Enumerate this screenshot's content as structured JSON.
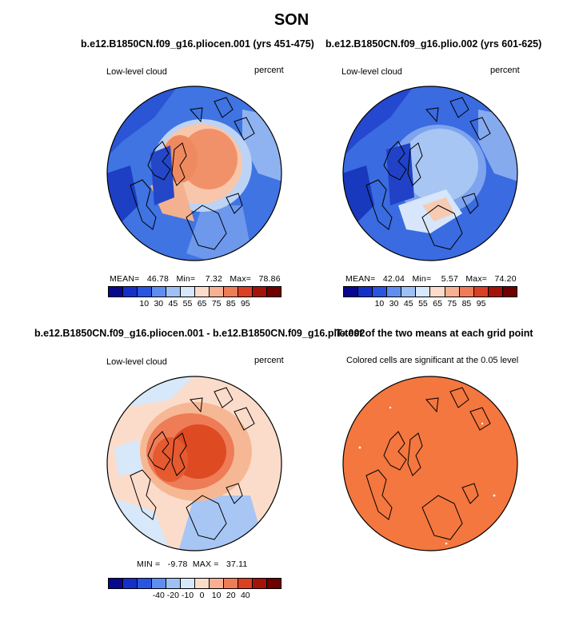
{
  "figure_title": "SON",
  "panels": [
    {
      "title": "b.e12.B1850CN.f09_g16.pliocen.001 (yrs 451-475)",
      "left_label": "Low-level cloud",
      "right_label": "percent",
      "stats": "MEAN=   46.78   Min=    7.32   Max=   78.86",
      "colorbar": {
        "colors": [
          "#08088f",
          "#1530c8",
          "#2a55e0",
          "#5f8ef0",
          "#9ec0f5",
          "#d6e8fa",
          "#fbdccb",
          "#f7b092",
          "#ee7c57",
          "#d94024",
          "#a51208",
          "#6e0000"
        ],
        "ticks": [
          "10",
          "30",
          "45",
          "55",
          "65",
          "75",
          "85",
          "95"
        ]
      }
    },
    {
      "title": "b.e12.B1850CN.f09_g16.plio.002 (yrs 601-625)",
      "left_label": "Low-level cloud",
      "right_label": "percent",
      "stats": "MEAN=   42.04   Min=    5.57   Max=   74.20",
      "colorbar": {
        "colors": [
          "#08088f",
          "#1530c8",
          "#2a55e0",
          "#5f8ef0",
          "#9ec0f5",
          "#d6e8fa",
          "#fbdccb",
          "#f7b092",
          "#ee7c57",
          "#d94024",
          "#a51208",
          "#6e0000"
        ],
        "ticks": [
          "10",
          "30",
          "45",
          "55",
          "65",
          "75",
          "85",
          "95"
        ]
      }
    },
    {
      "title": "b.e12.B1850CN.f09_g16.pliocen.001 - b.e12.B1850CN.f09_g16.plio.002",
      "left_label": "Low-level cloud",
      "right_label": "percent",
      "stats": "MIN =   -9.78  MAX =   37.11",
      "colorbar": {
        "colors": [
          "#08088f",
          "#1530c8",
          "#2a55e0",
          "#5f8ef0",
          "#9ec0f5",
          "#d6e8fa",
          "#fbdccb",
          "#f7b092",
          "#ee7c57",
          "#d94024",
          "#a51208",
          "#6e0000"
        ],
        "ticks": [
          "-40",
          "-20",
          "-10",
          "0",
          "10",
          "20",
          "40"
        ]
      }
    },
    {
      "title": "T-test of the two means at each grid point",
      "left_label": "Colored cells are significant at the 0.05 level"
    }
  ],
  "colors": {
    "ocean_blue": "#3a6fe0",
    "deep_blue": "#1a3fc0",
    "light_blue": "#a9c8f3",
    "pale": "#e6eefb",
    "warm_light": "#f8c8ad",
    "warm": "#f08a5c",
    "warm_strong": "#e2502a",
    "ttest_fill": "#f3773f"
  }
}
